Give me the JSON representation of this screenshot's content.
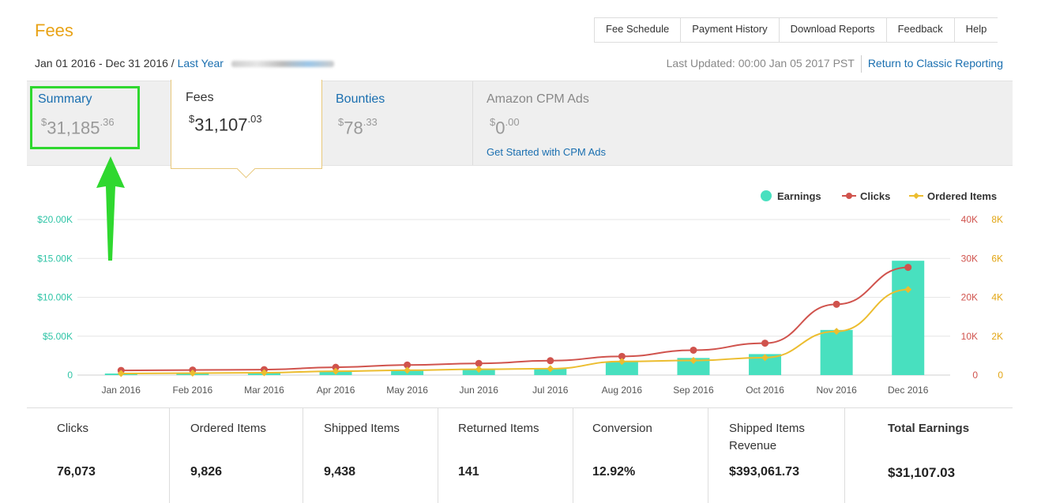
{
  "header": {
    "title": "Fees",
    "nav": [
      "Fee Schedule",
      "Payment History",
      "Download Reports",
      "Feedback",
      "Help"
    ],
    "date_range": "Jan 01 2016 - Dec 31 2016 / ",
    "date_preset": "Last Year",
    "last_updated": "Last Updated: 00:00 Jan 05 2017 PST",
    "classic_link": "Return to Classic Reporting"
  },
  "tabs": {
    "summary": {
      "label": "Summary",
      "currency": "$",
      "whole": "31,185",
      "cents": ".36"
    },
    "fees": {
      "label": "Fees",
      "currency": "$",
      "whole": "31,107",
      "cents": ".03"
    },
    "bounties": {
      "label": "Bounties",
      "currency": "$",
      "whole": "78",
      "cents": ".33"
    },
    "cpm": {
      "label": "Amazon CPM Ads",
      "currency": "$",
      "whole": "0",
      "cents": ".00",
      "link": "Get Started with CPM Ads"
    }
  },
  "chart_data": {
    "type": "bar",
    "categories": [
      "Jan 2016",
      "Feb 2016",
      "Mar 2016",
      "Apr 2016",
      "May 2016",
      "Jun 2016",
      "Jul 2016",
      "Aug 2016",
      "Sep 2016",
      "Oct 2016",
      "Nov 2016",
      "Dec 2016"
    ],
    "series": [
      {
        "name": "Earnings",
        "type": "bar",
        "axis": "left",
        "color": "#48e0bf",
        "values": [
          200,
          250,
          280,
          450,
          550,
          750,
          850,
          1700,
          2200,
          2700,
          5800,
          14700
        ]
      },
      {
        "name": "Clicks",
        "type": "line",
        "axis": "right1",
        "color": "#d0534d",
        "values": [
          1200,
          1300,
          1400,
          2000,
          2600,
          3000,
          3700,
          4800,
          6400,
          8200,
          18200,
          27700
        ]
      },
      {
        "name": "Ordered Items",
        "type": "line",
        "axis": "right2",
        "color": "#ecbd2f",
        "values": [
          80,
          100,
          120,
          200,
          250,
          300,
          330,
          700,
          750,
          900,
          2250,
          4400
        ]
      }
    ],
    "y_left": {
      "ticks": [
        "0",
        "$5.00K",
        "$10.00K",
        "$15.00K",
        "$20.00K"
      ],
      "ylim": [
        0,
        20000
      ],
      "color": "#2ec4a6"
    },
    "y_right1": {
      "ticks": [
        "0",
        "10K",
        "20K",
        "30K",
        "40K"
      ],
      "ylim": [
        0,
        40000
      ],
      "color": "#d0534d"
    },
    "y_right2": {
      "ticks": [
        "0",
        "2K",
        "4K",
        "6K",
        "8K"
      ],
      "ylim": [
        0,
        8000
      ],
      "color": "#e2a514"
    },
    "legend": [
      "Earnings",
      "Clicks",
      "Ordered Items"
    ],
    "legend_position": "top-right",
    "grid": true
  },
  "stats": [
    {
      "label": "Clicks",
      "value": "76,073"
    },
    {
      "label": "Ordered Items",
      "value": "9,826"
    },
    {
      "label": "Shipped Items",
      "value": "9,438"
    },
    {
      "label": "Returned Items",
      "value": "141"
    },
    {
      "label": "Conversion",
      "value": "12.92%"
    },
    {
      "label": "Shipped Items Revenue",
      "value": "$393,061.73"
    },
    {
      "label": "Total Earnings",
      "value": "$31,107.03"
    }
  ]
}
